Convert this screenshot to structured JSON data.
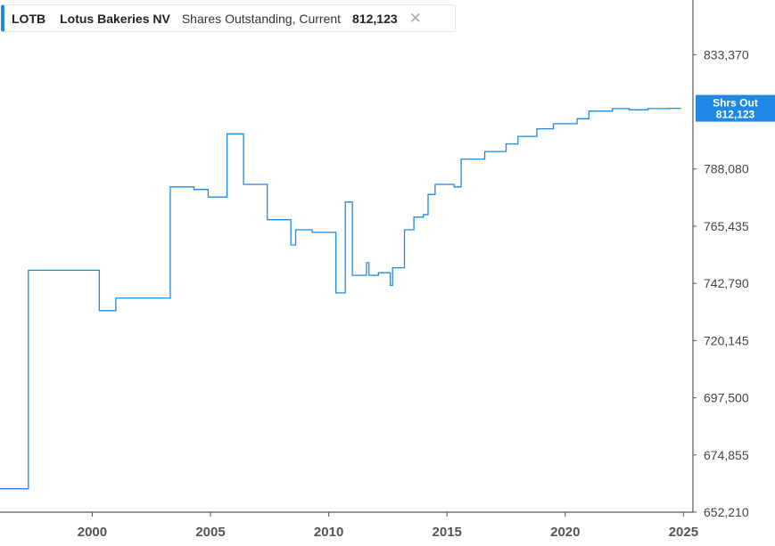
{
  "legend": {
    "ticker": "LOTB",
    "company": "Lotus Bakeries NV",
    "metric": "Shares Outstanding, Current",
    "value": "812,123",
    "close_icon": "close-icon"
  },
  "badge": {
    "label": "Shrs Out",
    "value": "812,123",
    "color": "#1e88e5"
  },
  "chart_data": {
    "type": "line",
    "step": true,
    "title": "",
    "xlabel": "",
    "ylabel": "",
    "color": "#1e88e5",
    "xlim": [
      1996.1,
      2025.4
    ],
    "ylim": [
      652210,
      855000
    ],
    "x_ticks": [
      2000,
      2005,
      2010,
      2015,
      2020,
      2025
    ],
    "y_ticks": [
      652210,
      674855,
      697500,
      720145,
      742790,
      765435,
      788080,
      833370
    ],
    "y_tick_labels": [
      "652,210",
      "674,855",
      "697,500",
      "720,145",
      "742,790",
      "765,435",
      "788,080",
      "833,370"
    ],
    "series": [
      {
        "points": [
          [
            1996.1,
            661500
          ],
          [
            1997.3,
            661500
          ],
          [
            1997.3,
            748000
          ],
          [
            2000.3,
            748000
          ],
          [
            2000.3,
            732000
          ],
          [
            2001.0,
            732000
          ],
          [
            2001.0,
            737000
          ],
          [
            2003.3,
            737000
          ],
          [
            2003.3,
            781000
          ],
          [
            2004.3,
            781000
          ],
          [
            2004.3,
            780000
          ],
          [
            2004.9,
            780000
          ],
          [
            2004.9,
            777000
          ],
          [
            2005.7,
            777000
          ],
          [
            2005.7,
            802000
          ],
          [
            2006.4,
            802000
          ],
          [
            2006.4,
            782000
          ],
          [
            2007.4,
            782000
          ],
          [
            2007.4,
            768000
          ],
          [
            2008.4,
            768000
          ],
          [
            2008.4,
            758000
          ],
          [
            2008.6,
            758000
          ],
          [
            2008.6,
            764000
          ],
          [
            2009.3,
            764000
          ],
          [
            2009.3,
            763000
          ],
          [
            2010.3,
            763000
          ],
          [
            2010.3,
            739000
          ],
          [
            2010.7,
            739000
          ],
          [
            2010.7,
            775000
          ],
          [
            2011.0,
            775000
          ],
          [
            2011.0,
            746000
          ],
          [
            2011.6,
            746000
          ],
          [
            2011.6,
            751000
          ],
          [
            2011.7,
            751000
          ],
          [
            2011.7,
            746000
          ],
          [
            2012.1,
            746000
          ],
          [
            2012.1,
            747000
          ],
          [
            2012.6,
            747000
          ],
          [
            2012.6,
            742000
          ],
          [
            2012.7,
            742000
          ],
          [
            2012.7,
            749000
          ],
          [
            2013.2,
            749000
          ],
          [
            2013.2,
            764000
          ],
          [
            2013.6,
            764000
          ],
          [
            2013.6,
            769000
          ],
          [
            2014.0,
            769000
          ],
          [
            2014.0,
            770000
          ],
          [
            2014.2,
            770000
          ],
          [
            2014.2,
            778000
          ],
          [
            2014.5,
            778000
          ],
          [
            2014.5,
            782000
          ],
          [
            2015.3,
            782000
          ],
          [
            2015.3,
            781000
          ],
          [
            2015.6,
            781000
          ],
          [
            2015.6,
            792000
          ],
          [
            2016.6,
            792000
          ],
          [
            2016.6,
            795000
          ],
          [
            2017.5,
            795000
          ],
          [
            2017.5,
            798000
          ],
          [
            2018.0,
            798000
          ],
          [
            2018.0,
            801000
          ],
          [
            2018.8,
            801000
          ],
          [
            2018.8,
            804000
          ],
          [
            2019.5,
            804000
          ],
          [
            2019.5,
            806000
          ],
          [
            2020.5,
            806000
          ],
          [
            2020.5,
            808000
          ],
          [
            2021.0,
            808000
          ],
          [
            2021.0,
            811000
          ],
          [
            2022.0,
            811000
          ],
          [
            2022.0,
            812000
          ],
          [
            2022.7,
            812000
          ],
          [
            2022.7,
            811500
          ],
          [
            2023.5,
            811500
          ],
          [
            2023.5,
            812000
          ],
          [
            2024.4,
            812000
          ],
          [
            2024.4,
            812123
          ],
          [
            2024.9,
            812123
          ]
        ]
      }
    ]
  }
}
